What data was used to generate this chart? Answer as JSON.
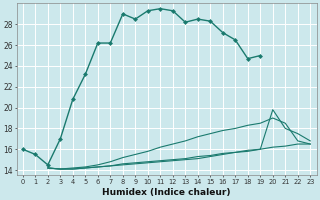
{
  "xlabel": "Humidex (Indice chaleur)",
  "bg_color": "#cce8ec",
  "grid_color": "#ffffff",
  "line_color": "#1a7a6e",
  "xlim": [
    -0.5,
    23.5
  ],
  "ylim": [
    13.5,
    30.0
  ],
  "yticks": [
    14,
    16,
    18,
    20,
    22,
    24,
    26,
    28
  ],
  "xticks": [
    0,
    1,
    2,
    3,
    4,
    5,
    6,
    7,
    8,
    9,
    10,
    11,
    12,
    13,
    14,
    15,
    16,
    17,
    18,
    19,
    20,
    21,
    22,
    23
  ],
  "s1_x": [
    0,
    1,
    2,
    3,
    4,
    5,
    6,
    7,
    8,
    9,
    10,
    11,
    12,
    13,
    14,
    15,
    16,
    17,
    18,
    19
  ],
  "s1_y": [
    16.0,
    15.5,
    14.5,
    17.0,
    20.8,
    23.2,
    26.2,
    26.2,
    29.0,
    28.5,
    29.3,
    29.5,
    29.3,
    28.2,
    28.5,
    28.3,
    27.2,
    26.5,
    24.7,
    25.0
  ],
  "s2_x": [
    2,
    3,
    4,
    5,
    6,
    7,
    8,
    9,
    10,
    11,
    12,
    13,
    14,
    15,
    16,
    17,
    18,
    19,
    20,
    21,
    22,
    23
  ],
  "s2_y": [
    14.2,
    14.1,
    14.2,
    14.3,
    14.5,
    14.8,
    15.2,
    15.5,
    15.8,
    16.2,
    16.5,
    16.8,
    17.2,
    17.5,
    17.8,
    18.0,
    18.3,
    18.5,
    19.0,
    18.5,
    16.8,
    16.5
  ],
  "s3_x": [
    2,
    3,
    4,
    5,
    6,
    7,
    8,
    9,
    10,
    11,
    12,
    13,
    14,
    15,
    16,
    17,
    18,
    19,
    20,
    21,
    22,
    23
  ],
  "s3_y": [
    14.2,
    14.1,
    14.1,
    14.2,
    14.3,
    14.4,
    14.6,
    14.7,
    14.8,
    14.9,
    15.0,
    15.1,
    15.3,
    15.4,
    15.6,
    15.7,
    15.8,
    16.0,
    16.2,
    16.3,
    16.5,
    16.5
  ],
  "s4_x": [
    2,
    3,
    4,
    5,
    6,
    7,
    8,
    9,
    10,
    11,
    12,
    13,
    14,
    15,
    16,
    17,
    18,
    19,
    20,
    21,
    22,
    23
  ],
  "s4_y": [
    14.2,
    14.1,
    14.1,
    14.2,
    14.3,
    14.4,
    14.5,
    14.6,
    14.7,
    14.8,
    14.9,
    15.0,
    15.1,
    15.3,
    15.5,
    15.7,
    15.9,
    16.0,
    19.8,
    18.0,
    17.5,
    16.8
  ]
}
